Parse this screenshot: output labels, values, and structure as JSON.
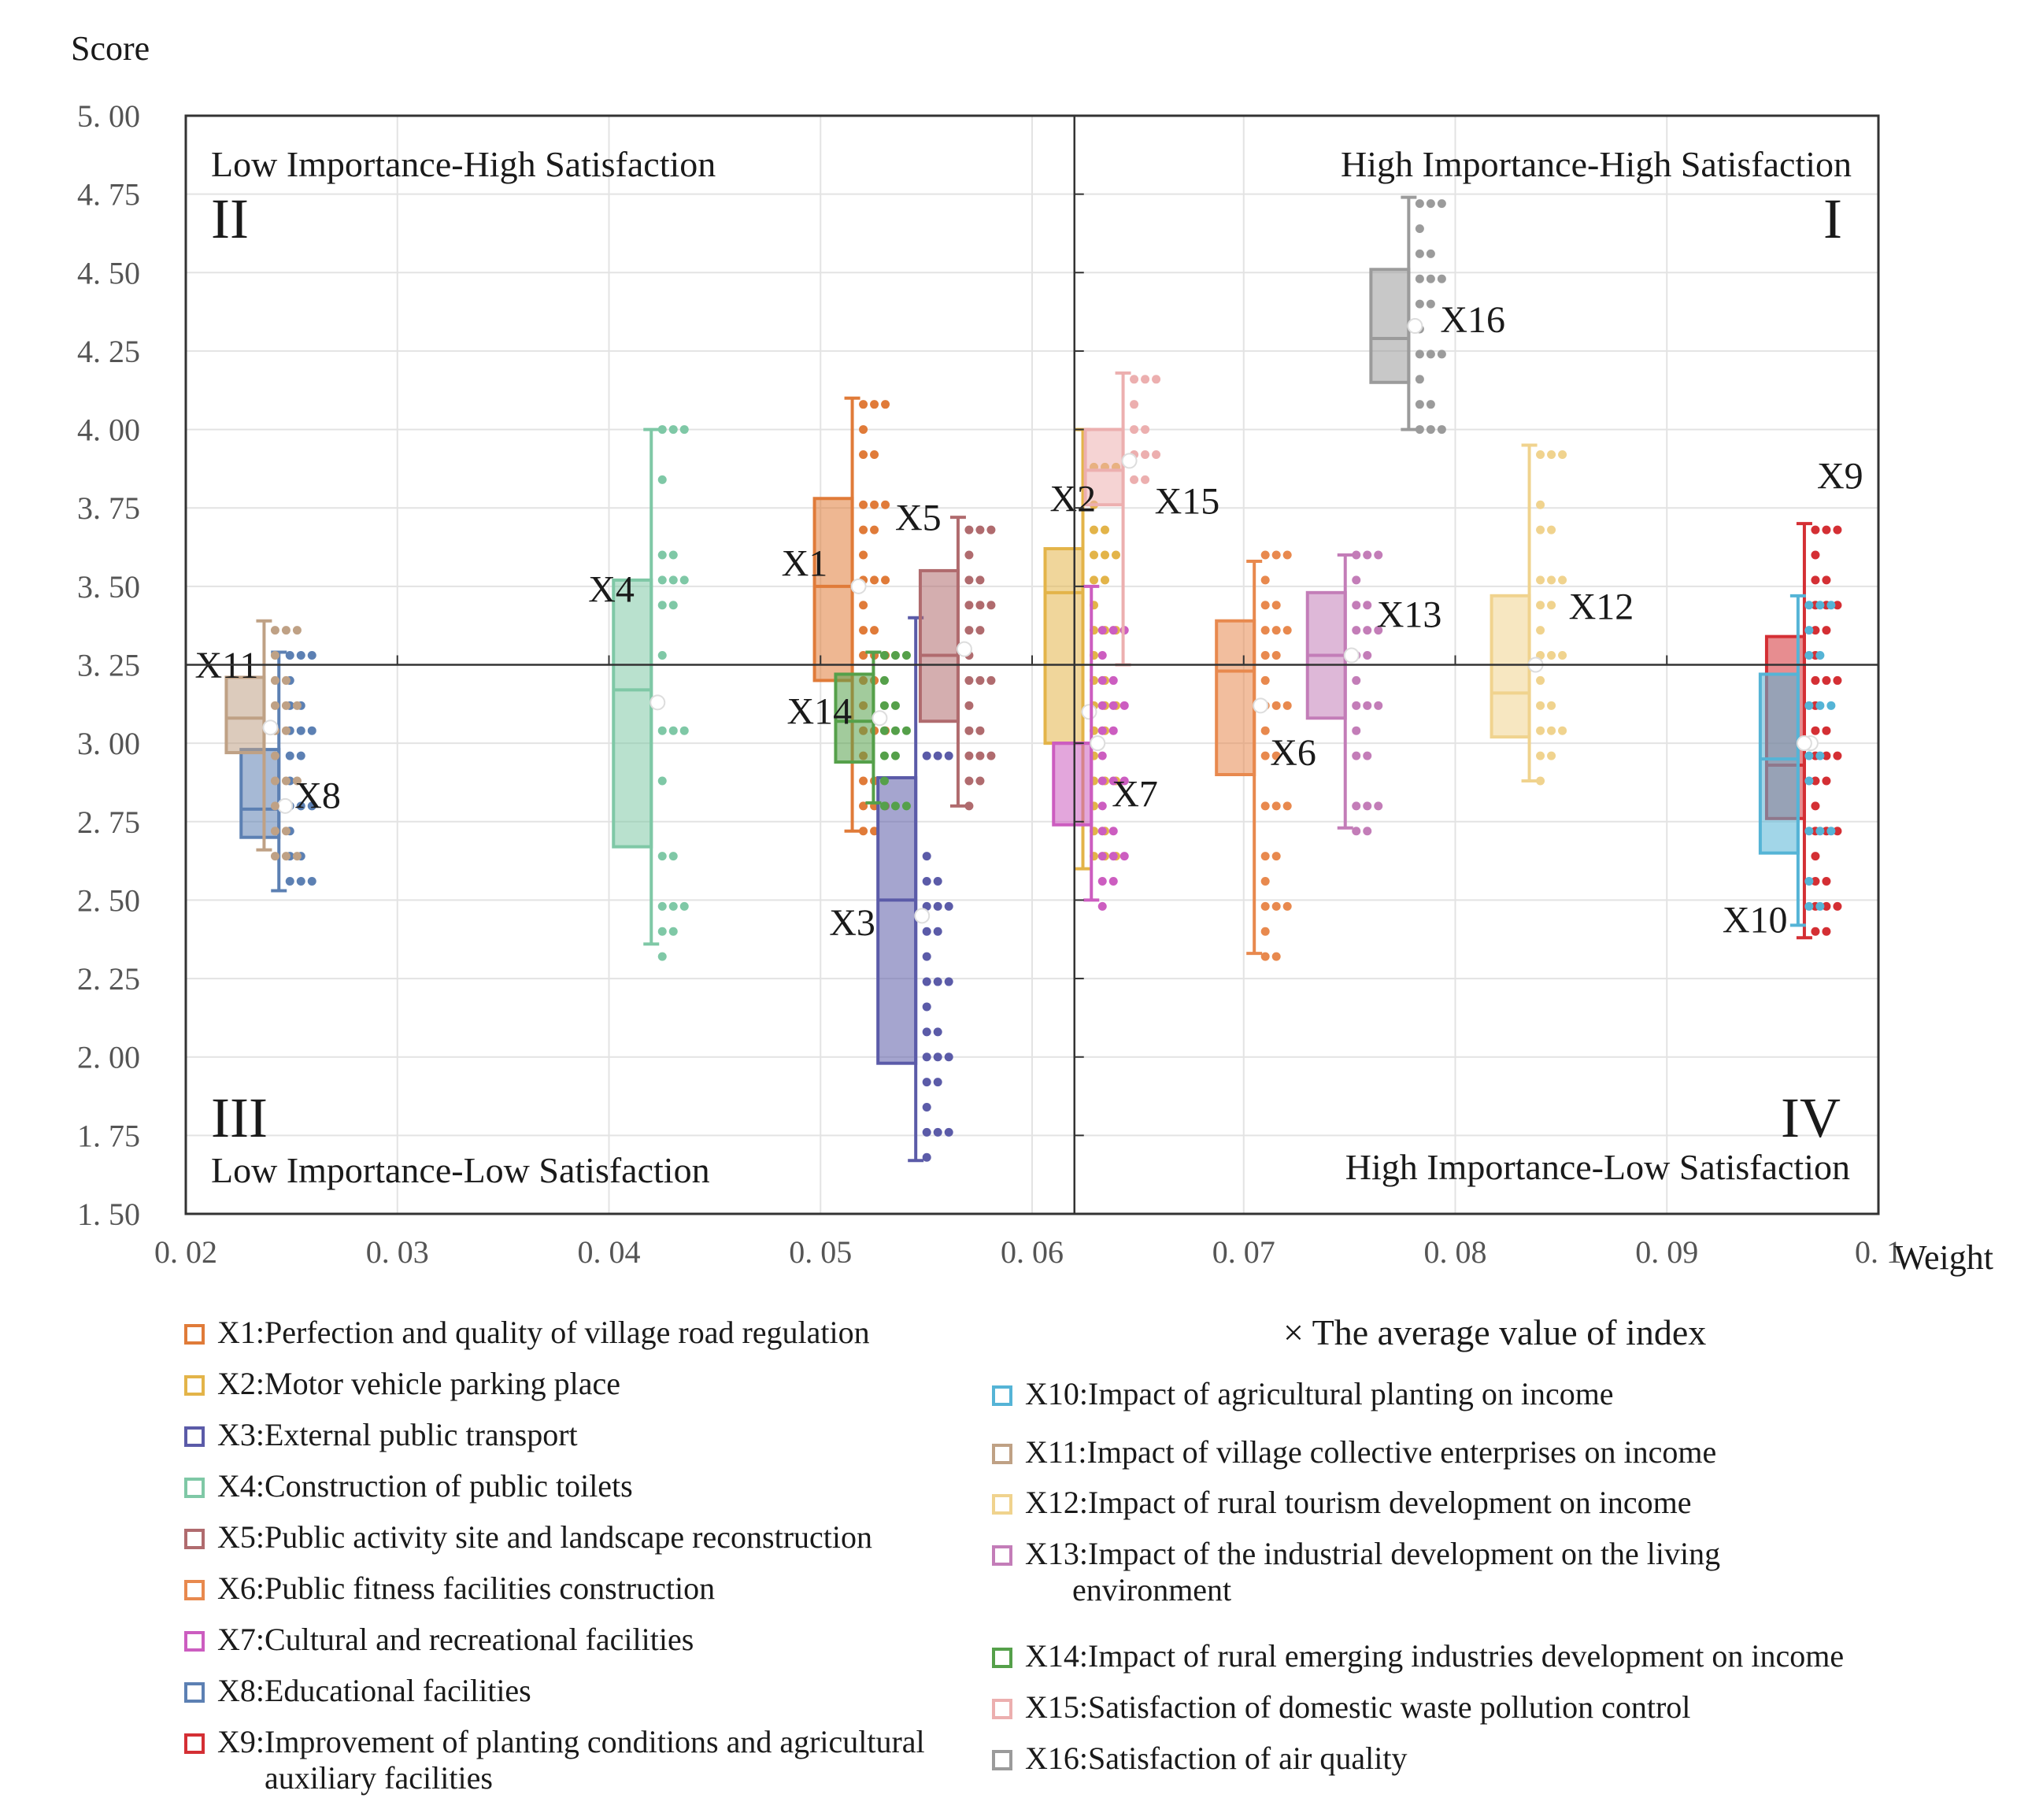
{
  "chart_data": {
    "type": "boxplot",
    "title": "",
    "xlabel": "Weight",
    "ylabel": "Score",
    "xlim": [
      0.02,
      0.1
    ],
    "ylim": [
      1.5,
      5.0
    ],
    "x_ticks": [
      0.02,
      0.03,
      0.04,
      0.05,
      0.06,
      0.07,
      0.08,
      0.09,
      0.1
    ],
    "x_tick_labels": [
      "0. 02",
      "0. 03",
      "0. 04",
      "0. 05",
      "0. 06",
      "0. 07",
      "0. 08",
      "0. 09",
      "0. 1"
    ],
    "y_ticks": [
      1.5,
      1.75,
      2.0,
      2.25,
      2.5,
      2.75,
      3.0,
      3.25,
      3.5,
      3.75,
      4.0,
      4.25,
      4.5,
      4.75,
      5.0
    ],
    "y_tick_labels": [
      "1. 50",
      "1. 75",
      "2. 00",
      "2. 25",
      "2. 50",
      "2. 75",
      "3. 00",
      "3. 25",
      "3. 50",
      "3. 75",
      "4. 00",
      "4. 25",
      "4. 50",
      "4. 75",
      "5. 00"
    ],
    "grid": true,
    "divider": {
      "x": 0.062,
      "y": 3.25
    },
    "quadrants": [
      {
        "numeral": "II",
        "label": "Low Importance-High Satisfaction",
        "position": "top-left"
      },
      {
        "numeral": "I",
        "label": "High Importance-High Satisfaction",
        "position": "top-right"
      },
      {
        "numeral": "III",
        "label": "Low Importance-Low Satisfaction",
        "position": "bottom-left"
      },
      {
        "numeral": "IV",
        "label": "High Importance-Low Satisfaction",
        "position": "bottom-right"
      }
    ],
    "mean_marker_note": "× The average value of index",
    "series": [
      {
        "id": "X1",
        "label": "X1:Perfection and quality of village road regulation",
        "color": "#E07B39",
        "weight": 0.0515,
        "min": 2.72,
        "q1": 3.2,
        "median": 3.5,
        "q3": 3.78,
        "max": 4.1,
        "mean": 3.5,
        "dots": [
          4.08,
          4.0,
          3.92,
          3.76,
          3.68,
          3.6,
          3.52,
          3.44,
          3.36,
          3.28,
          3.2,
          3.12,
          3.04,
          2.96,
          2.88,
          2.8,
          2.72
        ]
      },
      {
        "id": "X2",
        "label": "X2:Motor vehicle parking place",
        "color": "#E3B449",
        "weight": 0.0624,
        "min": 2.6,
        "q1": 3.0,
        "median": 3.48,
        "q3": 3.62,
        "max": 4.0,
        "mean": 3.1,
        "dots": [
          3.88,
          3.76,
          3.68,
          3.6,
          3.52,
          3.44,
          3.36,
          3.28,
          3.2,
          3.12,
          3.04,
          2.96,
          2.88,
          2.8,
          2.72,
          2.64
        ]
      },
      {
        "id": "X3",
        "label": "X3:External public transport",
        "color": "#5B5BA8",
        "weight": 0.0545,
        "min": 1.67,
        "q1": 1.98,
        "median": 2.5,
        "q3": 2.89,
        "max": 3.4,
        "mean": 2.45,
        "dots": [
          2.96,
          2.64,
          2.56,
          2.48,
          2.4,
          2.32,
          2.24,
          2.16,
          2.08,
          2.0,
          1.92,
          1.84,
          1.76,
          1.68
        ]
      },
      {
        "id": "X4",
        "label": "X4:Construction of public toilets",
        "color": "#7FC8A6",
        "weight": 0.042,
        "min": 2.36,
        "q1": 2.67,
        "median": 3.17,
        "q3": 3.52,
        "max": 4.0,
        "mean": 3.13,
        "dots": [
          4.0,
          3.84,
          3.6,
          3.52,
          3.44,
          3.28,
          3.04,
          2.88,
          2.64,
          2.48,
          2.4,
          2.32
        ]
      },
      {
        "id": "X5",
        "label": "X5:Public activity site and landscape reconstruction",
        "color": "#B06B6E",
        "weight": 0.0565,
        "min": 2.8,
        "q1": 3.07,
        "median": 3.28,
        "q3": 3.55,
        "max": 3.72,
        "mean": 3.3,
        "dots": [
          3.68,
          3.6,
          3.52,
          3.44,
          3.36,
          3.28,
          3.2,
          3.12,
          3.04,
          2.96,
          2.88,
          2.8
        ]
      },
      {
        "id": "X6",
        "label": "X6:Public fitness facilities construction",
        "color": "#E8894E",
        "weight": 0.0705,
        "min": 2.33,
        "q1": 2.9,
        "median": 3.23,
        "q3": 3.39,
        "max": 3.58,
        "mean": 3.12,
        "dots": [
          3.6,
          3.52,
          3.44,
          3.36,
          3.28,
          3.2,
          3.12,
          3.04,
          2.96,
          2.8,
          2.64,
          2.56,
          2.48,
          2.4,
          2.32
        ]
      },
      {
        "id": "X7",
        "label": "X7:Cultural and recreational facilities",
        "color": "#CC5DC0",
        "weight": 0.0628,
        "min": 2.5,
        "q1": 2.74,
        "median": 3.0,
        "q3": 3.0,
        "max": 3.5,
        "mean": 3.0,
        "dots": [
          3.36,
          3.28,
          3.2,
          3.12,
          3.04,
          2.96,
          2.88,
          2.8,
          2.72,
          2.64,
          2.56,
          2.48
        ]
      },
      {
        "id": "X8",
        "label": "X8:Educational facilities",
        "color": "#5C80B3",
        "weight": 0.0244,
        "min": 2.53,
        "q1": 2.7,
        "median": 2.79,
        "q3": 2.98,
        "max": 3.29,
        "mean": 2.8,
        "dots": [
          3.28,
          3.2,
          3.12,
          3.04,
          2.96,
          2.88,
          2.8,
          2.72,
          2.64,
          2.56
        ]
      },
      {
        "id": "X9",
        "label": "X9:Improvement of planting conditions and agricultural auxiliary facilities",
        "color": "#D42F34",
        "weight": 0.0965,
        "min": 2.38,
        "q1": 2.76,
        "median": 2.93,
        "q3": 3.34,
        "max": 3.7,
        "mean": 3.0,
        "dots": [
          3.68,
          3.6,
          3.52,
          3.44,
          3.36,
          3.28,
          3.2,
          3.12,
          3.04,
          2.96,
          2.88,
          2.8,
          2.72,
          2.64,
          2.56,
          2.48,
          2.4
        ]
      },
      {
        "id": "X10",
        "label": "X10:Impact of agricultural planting on income",
        "color": "#55B4D6",
        "weight": 0.0962,
        "min": 2.42,
        "q1": 2.65,
        "median": 2.95,
        "q3": 3.22,
        "max": 3.47,
        "mean": 3.0,
        "dots": [
          3.44,
          3.36,
          3.28,
          3.12,
          2.96,
          2.88,
          2.72,
          2.56,
          2.48
        ]
      },
      {
        "id": "X11",
        "label": "X11:Impact of village collective enterprises on income",
        "color": "#BFA185",
        "weight": 0.0237,
        "min": 2.66,
        "q1": 2.97,
        "median": 3.08,
        "q3": 3.21,
        "max": 3.39,
        "mean": 3.05,
        "dots": [
          3.36,
          3.28,
          3.2,
          3.12,
          3.04,
          2.96,
          2.88,
          2.8,
          2.72,
          2.64
        ]
      },
      {
        "id": "X12",
        "label": "X12:Impact of rural tourism development on income",
        "color": "#F0D38E",
        "weight": 0.0835,
        "min": 2.88,
        "q1": 3.02,
        "median": 3.16,
        "q3": 3.47,
        "max": 3.95,
        "mean": 3.25,
        "dots": [
          3.92,
          3.76,
          3.68,
          3.52,
          3.44,
          3.36,
          3.28,
          3.2,
          3.12,
          3.04,
          2.96,
          2.88
        ]
      },
      {
        "id": "X13",
        "label": "X13:Impact of the industrial development on the living environment",
        "color": "#C37DB8",
        "weight": 0.0748,
        "min": 2.73,
        "q1": 3.08,
        "median": 3.28,
        "q3": 3.48,
        "max": 3.6,
        "mean": 3.28,
        "dots": [
          3.6,
          3.52,
          3.44,
          3.36,
          3.28,
          3.2,
          3.12,
          3.04,
          2.96,
          2.8,
          2.72
        ]
      },
      {
        "id": "X14",
        "label": "X14:Impact of rural emerging industries development on income",
        "color": "#55A04A",
        "weight": 0.0525,
        "min": 2.81,
        "q1": 2.94,
        "median": 3.07,
        "q3": 3.22,
        "max": 3.29,
        "mean": 3.08,
        "dots": [
          3.28,
          3.2,
          3.12,
          3.04,
          2.96,
          2.88,
          2.8
        ]
      },
      {
        "id": "X15",
        "label": "X15:Satisfaction of domestic waste pollution control",
        "color": "#ECAFAF",
        "weight": 0.0643,
        "min": 3.25,
        "q1": 3.76,
        "median": 3.87,
        "q3": 4.0,
        "max": 4.18,
        "mean": 3.9,
        "dots": [
          4.16,
          4.08,
          4.0,
          3.92,
          3.84
        ]
      },
      {
        "id": "X16",
        "label": "X16:Satisfaction of air quality",
        "color": "#9B9B9B",
        "weight": 0.0778,
        "min": 4.0,
        "q1": 4.15,
        "median": 4.29,
        "q3": 4.51,
        "max": 4.74,
        "mean": 4.33,
        "dots": [
          4.72,
          4.64,
          4.56,
          4.48,
          4.4,
          4.32,
          4.24,
          4.16,
          4.08,
          4.0
        ]
      }
    ]
  }
}
